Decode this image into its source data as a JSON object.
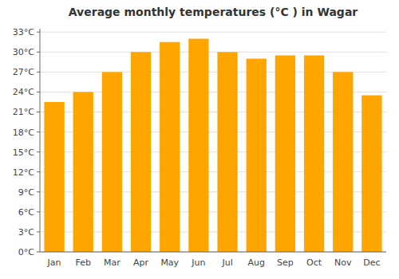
{
  "chart_data": {
    "type": "bar",
    "title": "Average monthly temperatures (°C ) in Wagar",
    "categories": [
      "Jan",
      "Feb",
      "Mar",
      "Apr",
      "May",
      "Jun",
      "Jul",
      "Aug",
      "Sep",
      "Oct",
      "Nov",
      "Dec"
    ],
    "values": [
      22.5,
      24.0,
      27.0,
      30.0,
      31.5,
      32.0,
      30.0,
      29.0,
      29.5,
      29.5,
      27.0,
      23.5
    ],
    "color": "#FFA500",
    "ylim": [
      0,
      33.5
    ],
    "yticks": [
      {
        "value": 0,
        "label": "0°C"
      },
      {
        "value": 3,
        "label": "3°C"
      },
      {
        "value": 6,
        "label": "6°C"
      },
      {
        "value": 9,
        "label": "9°C"
      },
      {
        "value": 12,
        "label": "12°C"
      },
      {
        "value": 15,
        "label": "15°C"
      },
      {
        "value": 18,
        "label": "18°C"
      },
      {
        "value": 21,
        "label": "21°C"
      },
      {
        "value": 24,
        "label": "24°C"
      },
      {
        "value": 27,
        "label": "27°C"
      },
      {
        "value": 30,
        "label": "30°C"
      },
      {
        "value": 33,
        "label": "33°C"
      }
    ],
    "grid": true
  }
}
